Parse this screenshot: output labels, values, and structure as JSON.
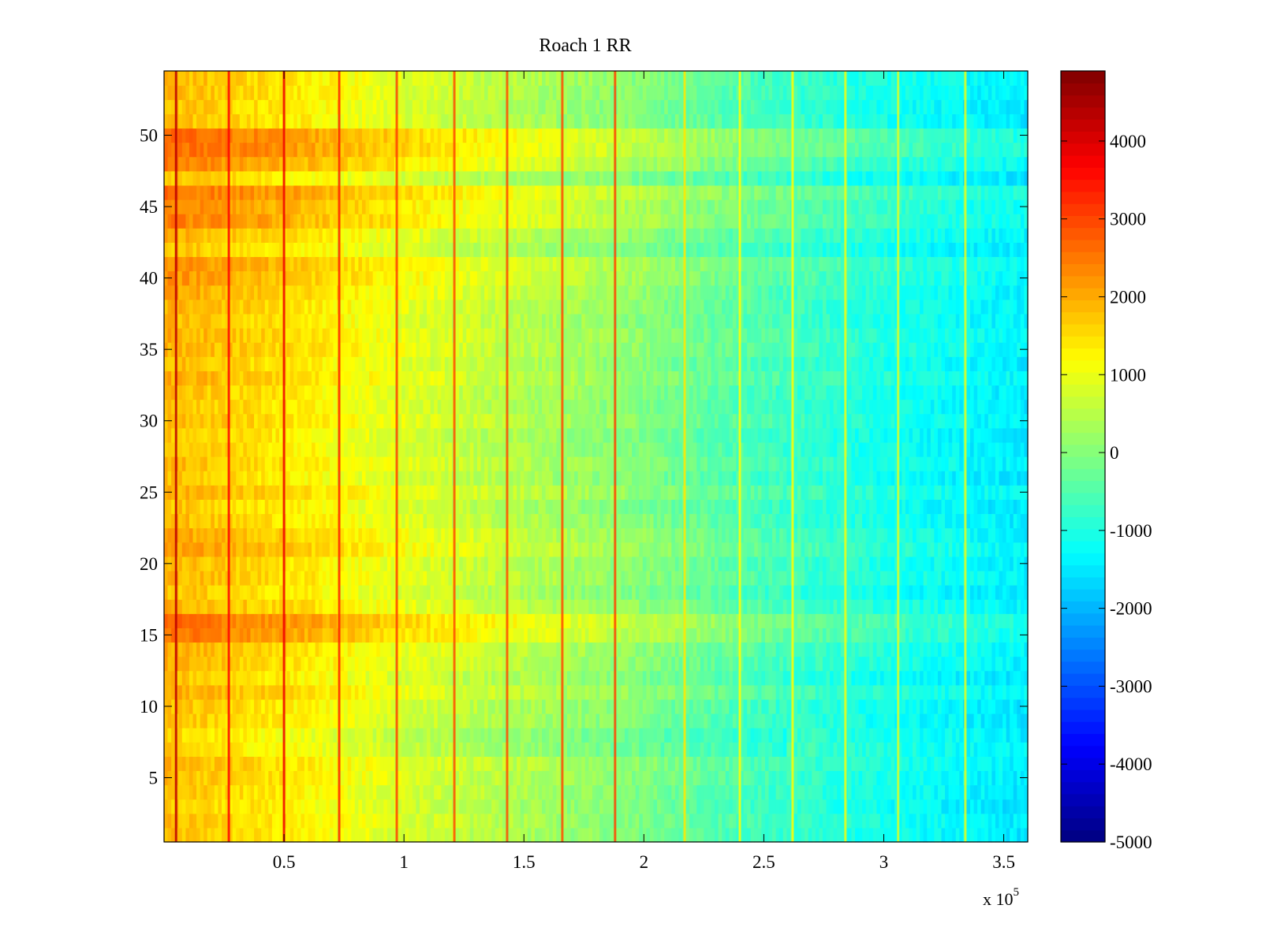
{
  "chart_data": {
    "type": "heatmap",
    "title": "Roach 1 RR",
    "xlabel": "",
    "ylabel": "",
    "x_multiplier_label": "x 10",
    "x_multiplier_exponent": "5",
    "xlim": [
      0,
      3.6
    ],
    "ylim": [
      0.5,
      54.5
    ],
    "x_ticks": [
      0.5,
      1,
      1.5,
      2,
      2.5,
      3,
      3.5
    ],
    "x_tick_labels": [
      "0.5",
      "1",
      "1.5",
      "2",
      "2.5",
      "3",
      "3.5"
    ],
    "y_ticks": [
      5,
      10,
      15,
      20,
      25,
      30,
      35,
      40,
      45,
      50
    ],
    "y_tick_labels": [
      "5",
      "10",
      "15",
      "20",
      "25",
      "30",
      "35",
      "40",
      "45",
      "50"
    ],
    "rows": 54,
    "colorbar": {
      "colormap": "jet",
      "clim": [
        -5000,
        4900
      ],
      "ticks": [
        4000,
        3000,
        2000,
        1000,
        0,
        -1000,
        -2000,
        -3000,
        -4000,
        -5000
      ],
      "tick_labels": [
        "4000",
        "3000",
        "2000",
        "1000",
        "0",
        "-1000",
        "-2000",
        "-3000",
        "-4000",
        "-5000"
      ]
    },
    "trend": {
      "x_knots": [
        0,
        0.5,
        1.0,
        1.5,
        2.0,
        2.5,
        3.0,
        3.6
      ],
      "base_values": [
        1900,
        1450,
        900,
        450,
        0,
        -600,
        -1050,
        -1450
      ]
    },
    "stripe_rows": [
      {
        "rows": [
          15,
          16
        ],
        "delta": 700
      },
      {
        "rows": [
          44,
          45,
          46
        ],
        "delta": 600
      },
      {
        "rows": [
          48,
          49,
          50
        ],
        "delta": 700
      },
      {
        "rows": [
          39,
          40,
          41
        ],
        "delta": 350
      },
      {
        "rows": [
          21,
          22
        ],
        "delta": 300
      },
      {
        "rows": [
          7,
          8
        ],
        "delta": -350
      },
      {
        "rows": [
          1,
          2,
          3
        ],
        "delta": -150
      }
    ],
    "spike_columns": [
      {
        "x": 0.05,
        "value": 4300
      },
      {
        "x": 0.27,
        "value": 3600
      },
      {
        "x": 0.5,
        "value": 3800
      },
      {
        "x": 0.73,
        "value": 3300
      },
      {
        "x": 0.97,
        "value": 3000
      },
      {
        "x": 1.21,
        "value": 2900
      },
      {
        "x": 1.43,
        "value": 2900
      },
      {
        "x": 1.66,
        "value": 2900
      },
      {
        "x": 1.88,
        "value": 3000
      },
      {
        "x": 2.17,
        "value": 1400
      },
      {
        "x": 2.4,
        "value": 1200
      },
      {
        "x": 2.62,
        "value": 1200
      },
      {
        "x": 2.84,
        "value": 1000
      },
      {
        "x": 3.06,
        "value": 800
      },
      {
        "x": 3.34,
        "value": 900
      }
    ]
  }
}
